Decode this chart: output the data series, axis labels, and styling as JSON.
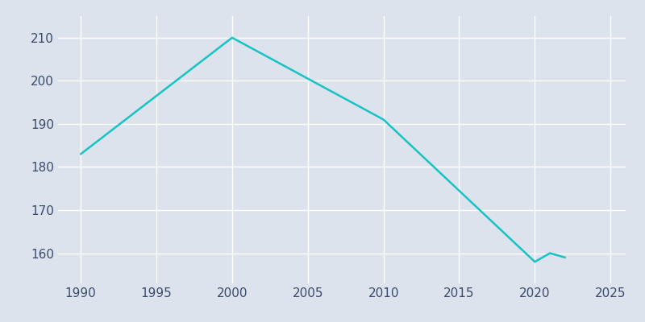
{
  "years": [
    1990,
    2000,
    2010,
    2020,
    2021,
    2022
  ],
  "population": [
    183,
    210,
    191,
    158,
    160,
    159
  ],
  "line_color": "#17c3c3",
  "background_color": "#dce3ed",
  "plot_bg_color": "#dce3ed",
  "grid_color": "#ffffff",
  "xlabel": "",
  "ylabel": "",
  "xlim": [
    1988.5,
    2026
  ],
  "ylim": [
    153,
    215
  ],
  "xticks": [
    1990,
    1995,
    2000,
    2005,
    2010,
    2015,
    2020,
    2025
  ],
  "yticks": [
    160,
    170,
    180,
    190,
    200,
    210
  ],
  "tick_color": "#3b4a6b",
  "line_width": 1.8,
  "tick_labelsize": 11
}
